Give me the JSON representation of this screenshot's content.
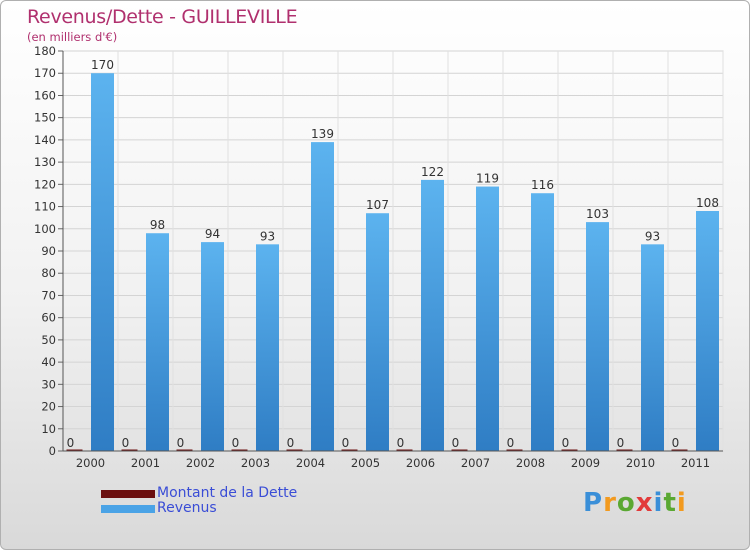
{
  "header": {
    "title": "Revenus/Dette - GUILLEVILLE",
    "subtitle": "(en milliers d'€)"
  },
  "legend": {
    "items": [
      {
        "label": "Montant de la Dette",
        "color": "#6b0f0f"
      },
      {
        "label": "Revenus",
        "color": "#4aa3e6"
      }
    ]
  },
  "brand": {
    "text": "Proxiti"
  },
  "chart_data": {
    "type": "bar",
    "title": "Revenus/Dette - GUILLEVILLE",
    "subtitle": "(en milliers d'€)",
    "xlabel": "",
    "ylabel": "",
    "ylim": [
      0,
      180
    ],
    "ytick_step": 10,
    "grid": true,
    "categories": [
      "2000",
      "2001",
      "2002",
      "2003",
      "2004",
      "2005",
      "2006",
      "2007",
      "2008",
      "2009",
      "2010",
      "2011"
    ],
    "series": [
      {
        "name": "Montant de la Dette",
        "color": "#6b0f0f",
        "values": [
          0,
          0,
          0,
          0,
          0,
          0,
          0,
          0,
          0,
          0,
          0,
          0
        ]
      },
      {
        "name": "Revenus",
        "color": "#4aa3e6",
        "values": [
          170,
          98,
          94,
          93,
          139,
          107,
          122,
          119,
          116,
          103,
          93,
          108
        ]
      }
    ]
  }
}
